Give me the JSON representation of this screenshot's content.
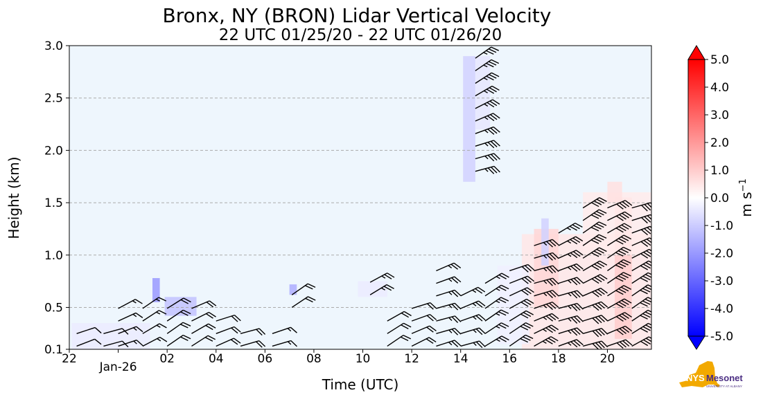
{
  "chart_data": {
    "type": "heatmap",
    "title": "Bronx, NY (BRON) Lidar Vertical Velocity",
    "subtitle": "22 UTC 01/25/20 - 22 UTC 01/26/20",
    "xlabel": "Time (UTC)",
    "ylabel": "Height (km)",
    "x_tick_labels": [
      "22",
      "Jan-26",
      "02",
      "04",
      "06",
      "08",
      "10",
      "12",
      "14",
      "16",
      "18",
      "20"
    ],
    "x_tick_hours": [
      22,
      24,
      26,
      28,
      30,
      32,
      34,
      36,
      38,
      40,
      42,
      44
    ],
    "xlim_hours": [
      22,
      45.8
    ],
    "y_ticks": [
      "0.1",
      "0.5",
      "1.0",
      "1.5",
      "2.0",
      "2.5",
      "3.0"
    ],
    "ylim": [
      0.1,
      3.0
    ],
    "grid": "horizontal dashed",
    "colorbar": {
      "label": "m s",
      "label_superscript": "−1",
      "ticks": [
        "5.0",
        "4.0",
        "3.0",
        "2.0",
        "1.0",
        "0.0",
        "-1.0",
        "-2.0",
        "-3.0",
        "-4.0",
        "-5.0"
      ],
      "range": [
        -5.0,
        5.0
      ],
      "colors": {
        "max": "#ff0000",
        "mid": "#ffffff",
        "min": "#0000ff"
      }
    },
    "colors": {
      "background_field": "#eef6fd",
      "barb": "#000000",
      "grid": "#aaaaaa"
    },
    "velocity_regions": [
      {
        "t0": 38.1,
        "t1": 38.6,
        "h0": 1.7,
        "h1": 2.9,
        "w": -0.9
      },
      {
        "t0": 38.6,
        "t1": 39.2,
        "h0": 2.2,
        "h1": 2.9,
        "w": -0.5
      },
      {
        "t0": 25.4,
        "t1": 25.7,
        "h0": 0.55,
        "h1": 0.78,
        "w": -2.0
      },
      {
        "t0": 25.9,
        "t1": 27.2,
        "h0": 0.42,
        "h1": 0.6,
        "w": -1.2
      },
      {
        "t0": 22.1,
        "t1": 25.3,
        "h0": 0.1,
        "h1": 0.35,
        "w": -0.4
      },
      {
        "t0": 31.0,
        "t1": 31.3,
        "h0": 0.62,
        "h1": 0.72,
        "w": -1.6
      },
      {
        "t0": 33.8,
        "t1": 35.0,
        "h0": 0.6,
        "h1": 0.75,
        "w": -0.4
      },
      {
        "t0": 40.5,
        "t1": 45.8,
        "h0": 0.1,
        "h1": 1.2,
        "w": 0.5
      },
      {
        "t0": 41.0,
        "t1": 42.0,
        "h0": 0.5,
        "h1": 1.25,
        "w": 0.8
      },
      {
        "t0": 44.3,
        "t1": 45.0,
        "h0": 0.2,
        "h1": 1.55,
        "w": 1.0
      },
      {
        "t0": 43.0,
        "t1": 45.8,
        "h0": 1.0,
        "h1": 1.6,
        "w": 0.4
      },
      {
        "t0": 41.3,
        "t1": 41.6,
        "h0": 0.9,
        "h1": 1.35,
        "w": -0.9
      },
      {
        "t0": 39.5,
        "t1": 40.8,
        "h0": 0.15,
        "h1": 0.9,
        "w": -0.3
      },
      {
        "t0": 44.0,
        "t1": 44.6,
        "h0": 1.5,
        "h1": 1.7,
        "w": 0.6
      }
    ],
    "wind_barbs": {
      "columns": [
        {
          "t": 22.3,
          "h": [
            0.13,
            0.35
          ],
          "kt": 10
        },
        {
          "t": 23.4,
          "h": [
            0.13,
            0.3
          ],
          "kt": 10
        },
        {
          "t": 24.0,
          "h": [
            0.13,
            0.55
          ],
          "kt": 15
        },
        {
          "t": 25.0,
          "h": [
            0.13,
            0.55
          ],
          "kt": 15
        },
        {
          "t": 26.0,
          "h": [
            0.13,
            0.5
          ],
          "kt": 20
        },
        {
          "t": 27.0,
          "h": [
            0.13,
            0.5
          ],
          "kt": 20
        },
        {
          "t": 28.0,
          "h": [
            0.13,
            0.45
          ],
          "kt": 20
        },
        {
          "t": 29.0,
          "h": [
            0.13,
            0.35
          ],
          "kt": 20
        },
        {
          "t": 30.3,
          "h": [
            0.13,
            0.25
          ],
          "kt": 15
        },
        {
          "t": 31.1,
          "h": [
            0.5,
            0.72
          ],
          "kt": 20
        },
        {
          "t": 34.3,
          "h": [
            0.62,
            0.75
          ],
          "kt": 25
        },
        {
          "t": 35.0,
          "h": [
            0.13,
            0.45
          ],
          "kt": 20
        },
        {
          "t": 36.0,
          "h": [
            0.13,
            0.55
          ],
          "kt": 20
        },
        {
          "t": 37.0,
          "h": [
            0.13,
            0.85
          ],
          "kt": 25
        },
        {
          "t": 38.0,
          "h": [
            0.13,
            0.7
          ],
          "kt": 25
        },
        {
          "t": 38.6,
          "h": [
            1.8,
            2.9
          ],
          "kt": 35
        },
        {
          "t": 39.0,
          "h": [
            0.13,
            0.75
          ],
          "kt": 25
        },
        {
          "t": 40.0,
          "h": [
            0.13,
            0.9
          ],
          "kt": 30
        },
        {
          "t": 41.0,
          "h": [
            0.13,
            1.2
          ],
          "kt": 35
        },
        {
          "t": 42.0,
          "h": [
            0.13,
            1.25
          ],
          "kt": 35
        },
        {
          "t": 43.0,
          "h": [
            0.13,
            1.5
          ],
          "kt": 40
        },
        {
          "t": 44.0,
          "h": [
            0.13,
            1.55
          ],
          "kt": 40
        },
        {
          "t": 45.0,
          "h": [
            0.13,
            1.55
          ],
          "kt": 40
        }
      ],
      "spacing_km": 0.12
    },
    "logo": {
      "text": "NYS",
      "text2": "Mesonet",
      "text3": "UNIVERSITY AT ALBANY",
      "state_color": "#f2a900",
      "text_color": "#4b2e83"
    }
  }
}
